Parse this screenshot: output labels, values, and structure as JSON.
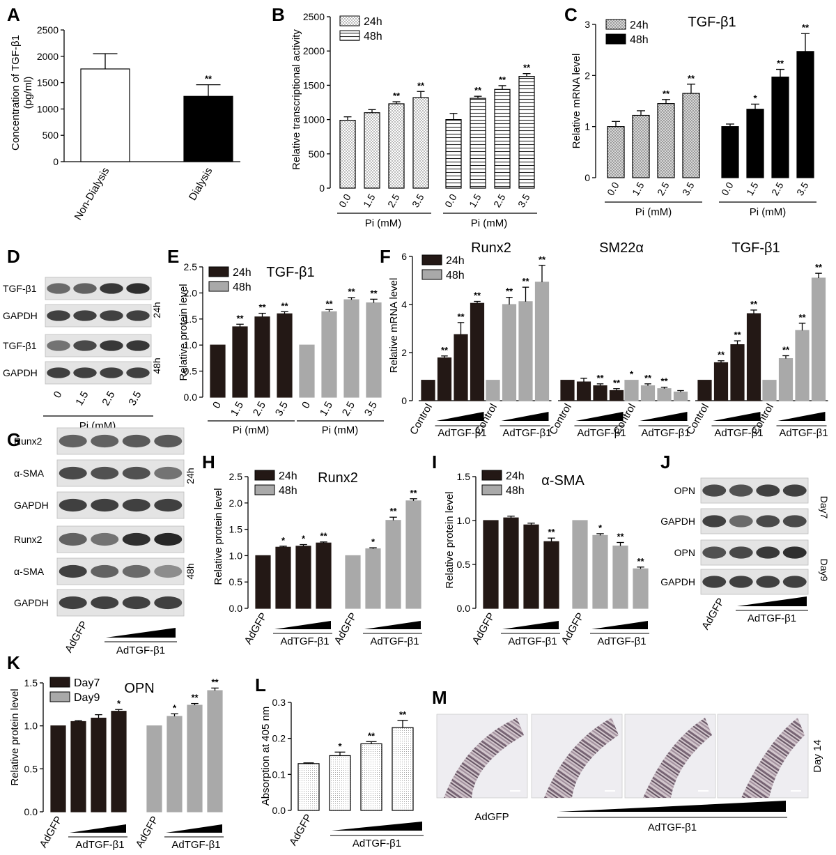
{
  "colors": {
    "dark": "#231815",
    "gray": "#a9a9a9",
    "white": "#ffffff",
    "lightgray": "#d9d9d9"
  },
  "panels": {
    "A": {
      "label": "A",
      "ylabel": "Concentration of TGF-β1",
      "ylabel2": "(pg/ml)",
      "sig": [
        "",
        "**"
      ]
    },
    "B": {
      "label": "B",
      "legend": [
        "24h",
        "48h"
      ],
      "xticks": [
        "0.0",
        "1.5",
        "2.5",
        "3.5"
      ],
      "group_label": "Pi (mM)",
      "sig24": [
        "",
        "",
        "**",
        "**"
      ],
      "sig48": [
        "",
        "**",
        "**",
        "**"
      ]
    },
    "C": {
      "label": "C",
      "title": "TGF-β1",
      "legend": [
        "24h",
        "48h"
      ],
      "xticks": [
        "0.0",
        "1.5",
        "2.5",
        "3.5"
      ],
      "group_label": "Pi (mM)",
      "sig24": [
        "",
        "",
        "**",
        "**"
      ],
      "sig48": [
        "",
        "*",
        "**",
        "**"
      ]
    },
    "D": {
      "label": "D",
      "rows": [
        "TGF-β1",
        "GAPDH",
        "TGF-β1",
        "GAPDH"
      ],
      "side": [
        "24h",
        "48h"
      ],
      "xticks": [
        "0",
        "1.5",
        "2.5",
        "3.5"
      ],
      "group_label": "Pi (mM)"
    },
    "E": {
      "label": "E",
      "title": "TGF-β1",
      "legend": [
        "24h",
        "48h"
      ],
      "xticks": [
        "0",
        "1.5",
        "2.5",
        "3.5"
      ],
      "group_label": "Pi (mM)",
      "sig": [
        "",
        "**",
        "**",
        "**"
      ]
    },
    "F": {
      "label": "F",
      "titles": [
        "Runx2",
        "SM22α",
        "TGF-β1"
      ],
      "legend": [
        "24h",
        "48h"
      ],
      "control": "Control",
      "treat": "AdTGF-β1",
      "sig": {
        "Runx2": [
          [
            "",
            "**",
            "**",
            "**"
          ],
          [
            "",
            "**",
            "**",
            "**"
          ]
        ],
        "SM22a": [
          [
            "",
            "",
            "**",
            "**"
          ],
          [
            "*",
            "**",
            "**",
            ""
          ]
        ],
        "TGFb1": [
          [
            "",
            "**",
            "**",
            "**"
          ],
          [
            "",
            "**",
            "**",
            "**"
          ]
        ]
      }
    },
    "G": {
      "label": "G",
      "rows": [
        "Runx2",
        "α-SMA",
        "GAPDH",
        "Runx2",
        "α-SMA",
        "GAPDH"
      ],
      "side": [
        "24h",
        "48h"
      ],
      "ctrl": "AdGFP",
      "treat": "AdTGF-β1"
    },
    "H": {
      "label": "H",
      "title": "Runx2",
      "legend": [
        "24h",
        "48h"
      ],
      "ctrl": "AdGFP",
      "treat": "AdTGF-β1",
      "sig24": [
        "",
        "*",
        "*",
        "**"
      ],
      "sig48": [
        "",
        "*",
        "**",
        "**"
      ]
    },
    "I": {
      "label": "I",
      "title": "α-SMA",
      "legend": [
        "24h",
        "48h"
      ],
      "ctrl": "AdGFP",
      "treat": "AdTGF-β1",
      "sig24": [
        "",
        "",
        "",
        "**"
      ],
      "sig48": [
        "",
        "*",
        "**",
        "**"
      ]
    },
    "J": {
      "label": "J",
      "rows": [
        "OPN",
        "GAPDH",
        "OPN",
        "GAPDH"
      ],
      "side": [
        "Day7",
        "Day9"
      ],
      "ctrl": "AdGFP",
      "treat": "AdTGF-β1"
    },
    "K": {
      "label": "K",
      "title": "OPN",
      "legend": [
        "Day7",
        "Day9"
      ],
      "ctrl": "AdGFP",
      "treat": "AdTGF-β1",
      "sig7": [
        "",
        "",
        "",
        "*"
      ],
      "sig9": [
        "",
        "*",
        "**",
        "**"
      ]
    },
    "L": {
      "label": "L",
      "ylabel": "Absorption at 405 nm",
      "ctrl": "AdGFP",
      "treat": "AdTGF-β1",
      "sig": [
        "",
        "*",
        "**",
        "**"
      ]
    },
    "M": {
      "label": "M",
      "ctrl": "AdGFP",
      "treat": "AdTGF-β1",
      "side": "Day 14"
    }
  },
  "chart_data": [
    {
      "panel": "A",
      "type": "bar",
      "categories": [
        "Non-Dialysis",
        "Dialysis"
      ],
      "values": [
        1760,
        1240
      ],
      "errors": [
        290,
        220
      ],
      "ylabel": "Concentration of TGF-β1 (pg/ml)",
      "ylim": [
        0,
        2500
      ],
      "yticks": [
        0,
        500,
        1000,
        1500,
        2000,
        2500
      ]
    },
    {
      "panel": "B",
      "type": "bar",
      "categories": [
        "0.0",
        "1.5",
        "2.5",
        "3.5"
      ],
      "xlabel": "Pi (mM)",
      "ylabel": "Relative transcriptional activity",
      "ylim": [
        0,
        2500
      ],
      "yticks": [
        0,
        500,
        1000,
        1500,
        2000,
        2500
      ],
      "series": [
        {
          "name": "24h",
          "values": [
            990,
            1100,
            1230,
            1320
          ],
          "errors": [
            50,
            45,
            30,
            90
          ]
        },
        {
          "name": "48h",
          "values": [
            1000,
            1310,
            1440,
            1630
          ],
          "errors": [
            90,
            30,
            55,
            40
          ]
        }
      ]
    },
    {
      "panel": "C",
      "type": "bar",
      "title": "TGF-β1",
      "categories": [
        "0.0",
        "1.5",
        "2.5",
        "3.5"
      ],
      "xlabel": "Pi (mM)",
      "ylabel": "Relative mRNA level",
      "ylim": [
        0,
        3
      ],
      "yticks": [
        0,
        1,
        2,
        3
      ],
      "series": [
        {
          "name": "24h",
          "values": [
            1.0,
            1.22,
            1.45,
            1.65
          ],
          "errors": [
            0.1,
            0.09,
            0.08,
            0.18
          ]
        },
        {
          "name": "48h",
          "values": [
            1.0,
            1.34,
            1.97,
            2.47
          ],
          "errors": [
            0.05,
            0.1,
            0.15,
            0.35
          ]
        }
      ]
    },
    {
      "panel": "E",
      "type": "bar",
      "title": "TGF-β1",
      "categories": [
        "0",
        "1.5",
        "2.5",
        "3.5"
      ],
      "xlabel": "Pi (mM)",
      "ylabel": "Relative protein level",
      "ylim": [
        0,
        2.5
      ],
      "yticks": [
        0,
        0.5,
        1.0,
        1.5,
        2.0,
        2.5
      ],
      "series": [
        {
          "name": "24h",
          "values": [
            1.0,
            1.35,
            1.54,
            1.6
          ],
          "errors": [
            0,
            0.05,
            0.07,
            0.04
          ]
        },
        {
          "name": "48h",
          "values": [
            1.0,
            1.64,
            1.87,
            1.81
          ],
          "errors": [
            0,
            0.04,
            0.04,
            0.07
          ]
        }
      ]
    },
    {
      "panel": "F",
      "type": "bar",
      "ylabel": "Relative mRNA level",
      "ylim": [
        0,
        6
      ],
      "yticks": [
        0,
        2,
        4,
        6
      ],
      "groups": [
        {
          "title": "Runx2",
          "series": [
            {
              "name": "24h",
              "values": [
                0.85,
                1.78,
                2.75,
                4.05
              ],
              "errors": [
                0,
                0.08,
                0.5,
                0.08
              ]
            },
            {
              "name": "48h",
              "values": [
                0.85,
                4.0,
                4.12,
                4.93
              ],
              "errors": [
                0,
                0.3,
                0.6,
                0.7
              ]
            }
          ]
        },
        {
          "title": "SM22α",
          "series": [
            {
              "name": "24h",
              "values": [
                0.85,
                0.78,
                0.62,
                0.42
              ],
              "errors": [
                0,
                0.15,
                0.08,
                0.08
              ]
            },
            {
              "name": "48h",
              "values": [
                0.85,
                0.62,
                0.5,
                0.36
              ],
              "errors": [
                0,
                0.08,
                0.06,
                0.06
              ]
            }
          ]
        },
        {
          "title": "TGF-β1",
          "series": [
            {
              "name": "24h",
              "values": [
                0.85,
                1.58,
                2.33,
                3.62
              ],
              "errors": [
                0,
                0.08,
                0.16,
                0.15
              ]
            },
            {
              "name": "48h",
              "values": [
                0.85,
                1.75,
                2.92,
                5.1
              ],
              "errors": [
                0,
                0.12,
                0.3,
                0.2
              ]
            }
          ]
        }
      ]
    },
    {
      "panel": "H",
      "type": "bar",
      "title": "Runx2",
      "ylabel": "Relative protein level",
      "ylim": [
        0,
        2.5
      ],
      "yticks": [
        0,
        0.5,
        1.0,
        1.5,
        2.0,
        2.5
      ],
      "series": [
        {
          "name": "24h",
          "values": [
            1.0,
            1.16,
            1.18,
            1.24
          ],
          "errors": [
            0,
            0.02,
            0.03,
            0.02
          ]
        },
        {
          "name": "48h",
          "values": [
            1.0,
            1.13,
            1.67,
            2.04
          ],
          "errors": [
            0,
            0.02,
            0.06,
            0.04
          ]
        }
      ]
    },
    {
      "panel": "I",
      "type": "bar",
      "title": "α-SMA",
      "ylabel": "Relative protein level",
      "ylim": [
        0,
        1.5
      ],
      "yticks": [
        0,
        0.5,
        1.0,
        1.5
      ],
      "series": [
        {
          "name": "24h",
          "values": [
            1.0,
            1.03,
            0.95,
            0.76
          ],
          "errors": [
            0,
            0.02,
            0.02,
            0.04
          ]
        },
        {
          "name": "48h",
          "values": [
            1.0,
            0.83,
            0.71,
            0.45
          ],
          "errors": [
            0,
            0.02,
            0.04,
            0.02
          ]
        }
      ]
    },
    {
      "panel": "K",
      "type": "bar",
      "title": "OPN",
      "ylabel": "Relative protein level",
      "ylim": [
        0,
        1.5
      ],
      "yticks": [
        0,
        0.5,
        1.0,
        1.5
      ],
      "series": [
        {
          "name": "Day7",
          "values": [
            1.0,
            1.05,
            1.09,
            1.17
          ],
          "errors": [
            0,
            0.01,
            0.04,
            0.02
          ]
        },
        {
          "name": "Day9",
          "values": [
            1.0,
            1.11,
            1.24,
            1.41
          ],
          "errors": [
            0,
            0.03,
            0.02,
            0.03
          ]
        }
      ]
    },
    {
      "panel": "L",
      "type": "bar",
      "ylabel": "Absorption at 405 nm",
      "ylim": [
        0,
        0.3
      ],
      "yticks": [
        0,
        0.1,
        0.2,
        0.3
      ],
      "values": [
        0.13,
        0.152,
        0.185,
        0.23
      ],
      "errors": [
        0.002,
        0.01,
        0.006,
        0.02
      ]
    }
  ]
}
